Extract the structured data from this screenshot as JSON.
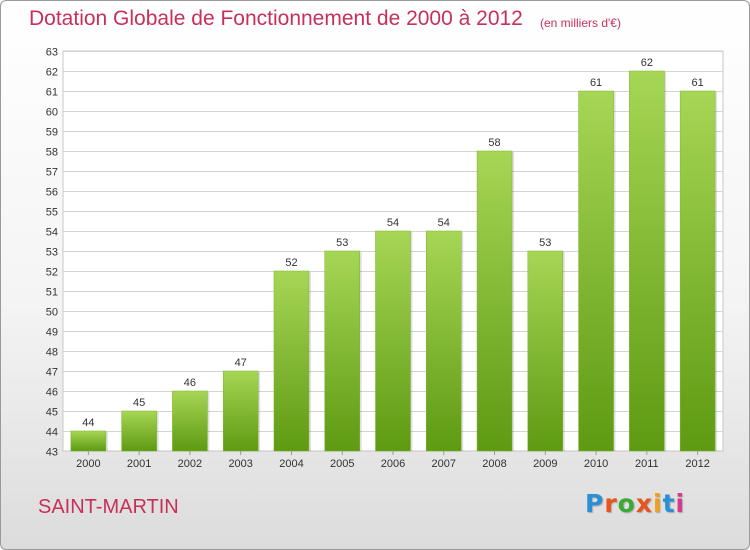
{
  "header": {
    "title": "Dotation Globale de Fonctionnement de 2000 à 2012",
    "unit": "(en milliers d'€)"
  },
  "footer": {
    "commune": "SAINT-MARTIN",
    "logo_text": "Proxiti",
    "logo_colors": [
      "#2b8fd6",
      "#e8541c",
      "#3aaa35",
      "#e8541c",
      "#f0a018",
      "#2b8fd6",
      "#d63a8a"
    ]
  },
  "colors": {
    "title": "#c8305a",
    "bar_light": "#a6d655",
    "bar_dark": "#5e9a12"
  },
  "chart_data": {
    "type": "bar",
    "categories": [
      "2000",
      "2001",
      "2002",
      "2003",
      "2004",
      "2005",
      "2006",
      "2007",
      "2008",
      "2009",
      "2010",
      "2011",
      "2012"
    ],
    "values": [
      44,
      45,
      46,
      47,
      52,
      53,
      54,
      54,
      58,
      53,
      61,
      62,
      61
    ],
    "ylim": [
      43,
      63
    ],
    "yticks": [
      43,
      44,
      45,
      46,
      47,
      48,
      49,
      50,
      51,
      52,
      53,
      54,
      55,
      56,
      57,
      58,
      59,
      60,
      61,
      62,
      63
    ],
    "grid": true
  }
}
